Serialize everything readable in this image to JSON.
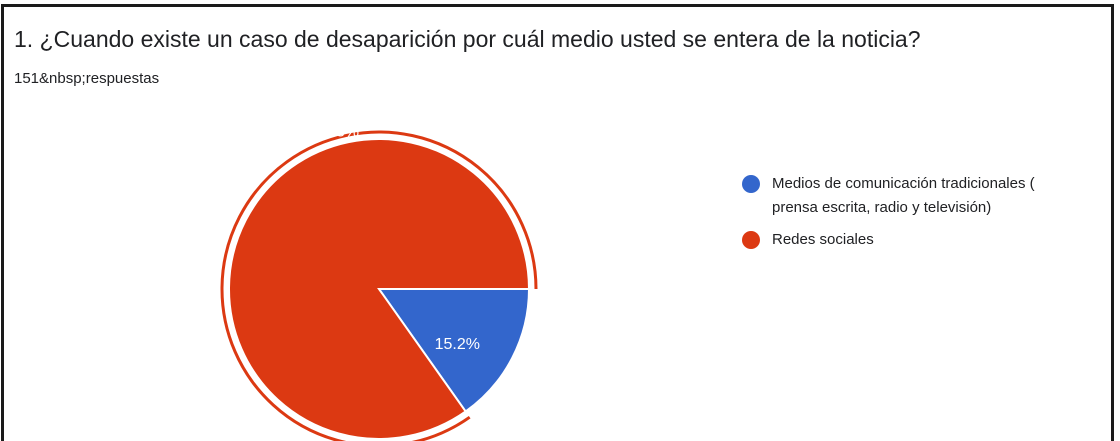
{
  "question": {
    "title": "1. ¿Cuando existe un caso de desaparición por cuál medio usted se entera de la noticia?",
    "response_count": "151&nbsp;respuestas"
  },
  "colors": {
    "series_1": "#3366cc",
    "series_2": "#dc3912"
  },
  "chart_data": {
    "type": "pie",
    "title": "",
    "legend_position": "right",
    "slices": [
      {
        "label": "Medios de comunicación tradicionales ( prensa escrita, radio y televisión)",
        "value": 15.2,
        "display": "15.2%",
        "color": "#3366cc"
      },
      {
        "label": "Redes sociales",
        "value": 84.8,
        "display": "84.8%",
        "color": "#dc3912",
        "selected": true
      }
    ]
  }
}
